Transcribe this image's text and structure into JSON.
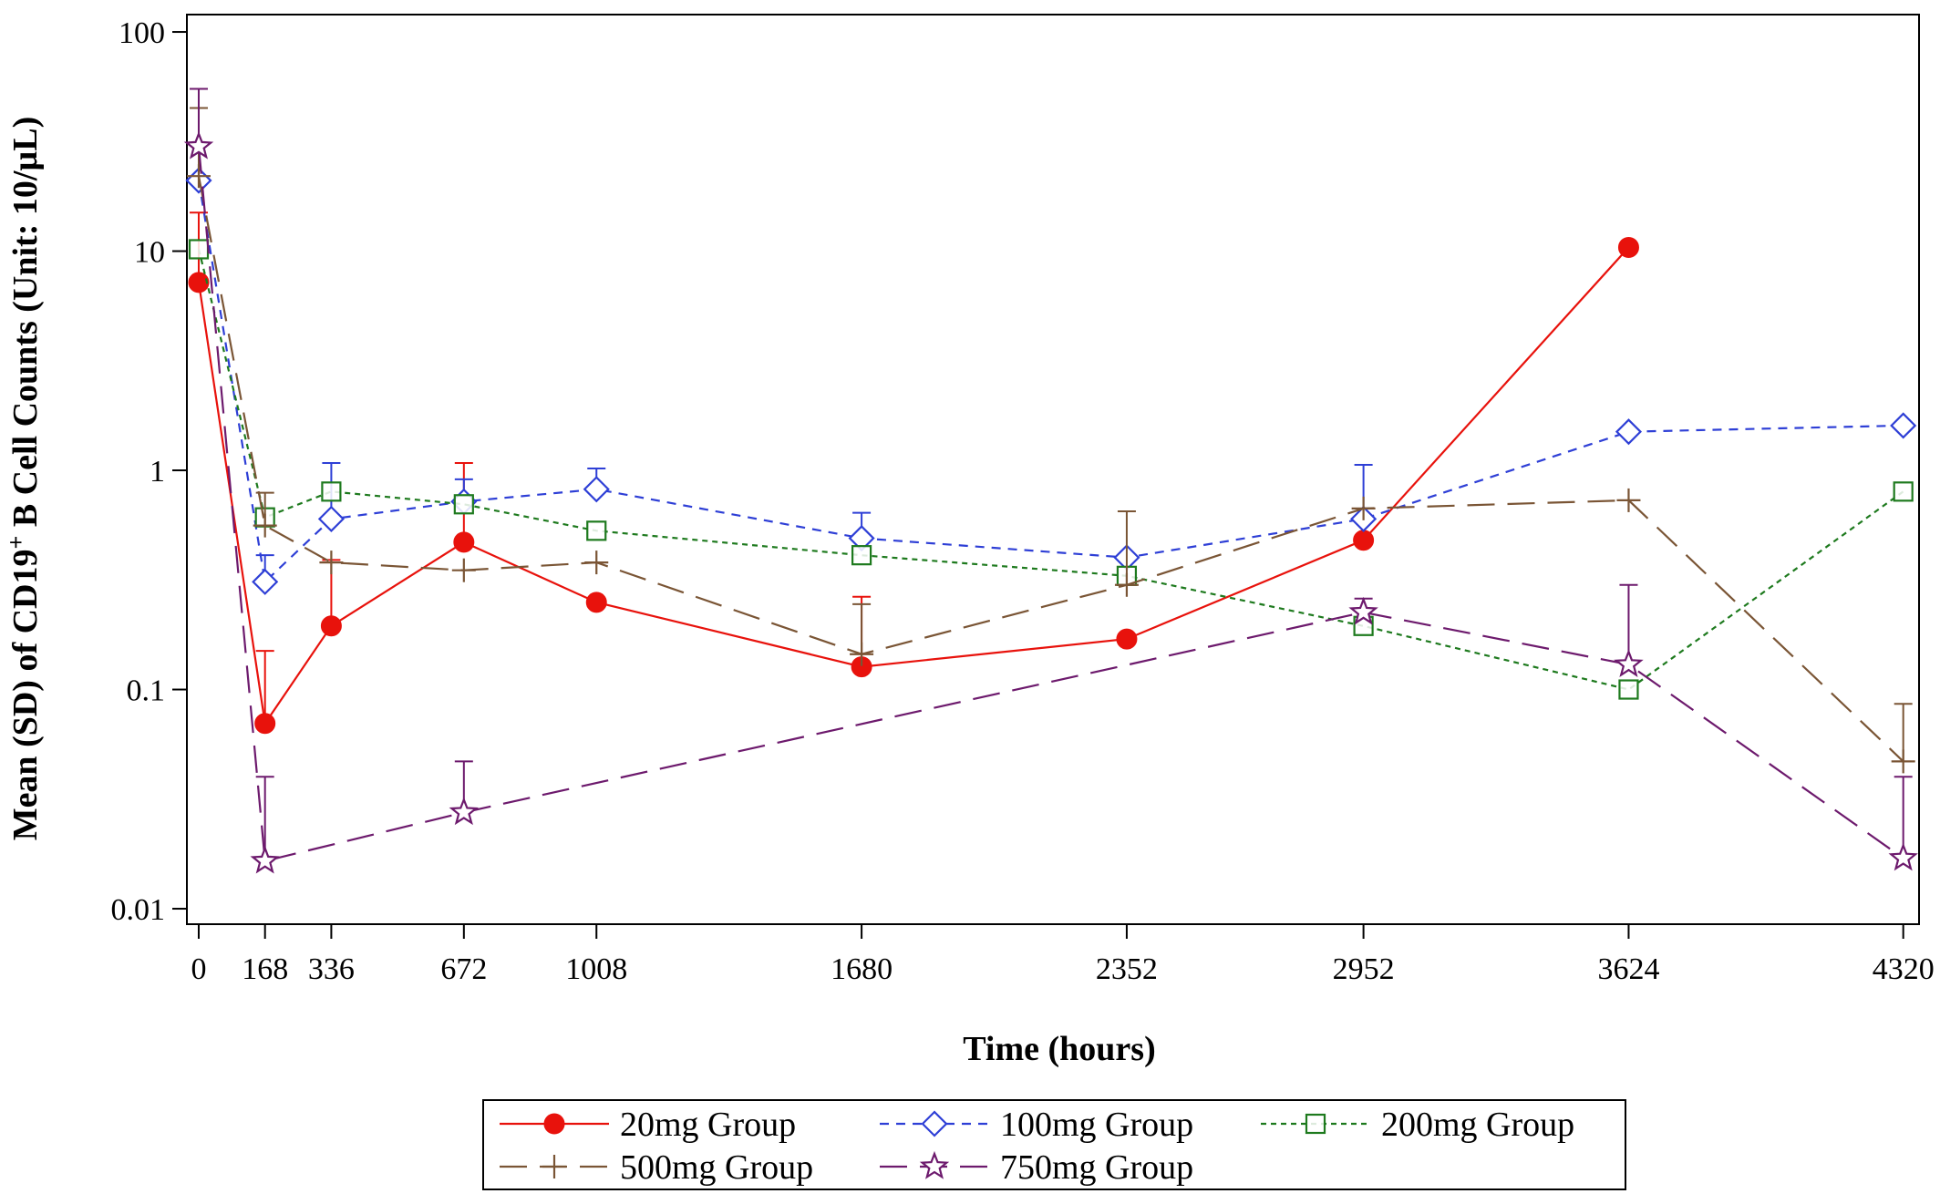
{
  "chart_data": {
    "type": "line",
    "title": "",
    "xlabel": "Time (hours)",
    "ylabel_parts": [
      "Mean (SD) of CD19",
      "+",
      " B Cell Counts (Unit: 10/µL)"
    ],
    "y_scale": "log",
    "ylim": [
      0.0085,
      120
    ],
    "xlim": [
      -30,
      4360
    ],
    "x_ticks": [
      0,
      168,
      336,
      672,
      1008,
      1680,
      2352,
      2952,
      3624,
      4320
    ],
    "x_tick_labels": [
      "0",
      "168",
      "336",
      "672",
      "1008",
      "1680",
      "2352",
      "2952",
      "3624",
      "4320"
    ],
    "y_ticks": [
      0.01,
      0.1,
      1,
      10,
      100
    ],
    "y_tick_labels": [
      "0.01",
      "0.1",
      "1",
      "10",
      "100"
    ],
    "grid": false,
    "legend_position": "bottom",
    "series": [
      {
        "name": "20mg Group",
        "color": "#e8120c",
        "marker": "filled-circle",
        "line": "solid",
        "x": [
          0,
          168,
          336,
          672,
          1008,
          1680,
          2352,
          2952,
          3624
        ],
        "y": [
          7.2,
          0.07,
          0.195,
          0.47,
          0.25,
          0.127,
          0.17,
          0.48,
          10.4
        ],
        "sd_upper": [
          15,
          0.15,
          0.39,
          1.08,
          null,
          0.265,
          null,
          null,
          null
        ]
      },
      {
        "name": "100mg Group",
        "color": "#2e3fd6",
        "marker": "open-diamond",
        "line": "short-dash",
        "x": [
          0,
          168,
          336,
          672,
          1008,
          1680,
          2352,
          2952,
          3624,
          4320
        ],
        "y": [
          21,
          0.31,
          0.6,
          0.72,
          0.82,
          0.49,
          0.4,
          0.6,
          1.5,
          1.6
        ],
        "sd_upper": [
          null,
          0.41,
          1.08,
          0.91,
          1.02,
          0.64,
          null,
          1.06,
          null,
          null
        ]
      },
      {
        "name": "200mg Group",
        "color": "#1e7a1e",
        "marker": "open-square",
        "line": "dot-dash",
        "x": [
          0,
          168,
          336,
          672,
          1008,
          1680,
          2352,
          2952,
          3624,
          4320
        ],
        "y": [
          10.2,
          0.61,
          0.8,
          0.7,
          0.53,
          0.41,
          0.33,
          0.195,
          0.1,
          0.8
        ],
        "sd_upper": [
          null,
          null,
          null,
          null,
          null,
          null,
          null,
          null,
          null,
          null
        ]
      },
      {
        "name": "500mg Group",
        "color": "#7a5535",
        "marker": "plus",
        "line": "long-dash",
        "x": [
          0,
          168,
          336,
          672,
          1008,
          1680,
          2352,
          2952,
          3624,
          4320
        ],
        "y": [
          22,
          0.56,
          0.38,
          0.35,
          0.38,
          0.145,
          0.3,
          0.67,
          0.73,
          0.047
        ],
        "sd_upper": [
          45,
          0.79,
          null,
          null,
          null,
          0.245,
          0.65,
          null,
          null,
          0.086
        ]
      },
      {
        "name": "750mg Group",
        "color": "#6d1a6d",
        "marker": "open-star",
        "line": "long-dash",
        "x": [
          0,
          168,
          672,
          2952,
          3624,
          4320
        ],
        "y": [
          30,
          0.0165,
          0.0275,
          0.225,
          0.13,
          0.017
        ],
        "sd_upper": [
          55,
          0.04,
          0.047,
          0.26,
          0.3,
          0.04
        ]
      }
    ]
  }
}
